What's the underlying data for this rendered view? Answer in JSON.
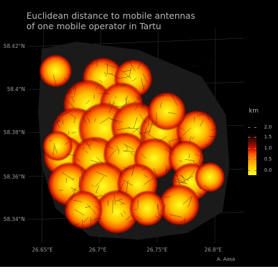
{
  "title_lines": [
    "Euclidean distance to mobile antennas",
    "of one mobile operator in Tartu"
  ],
  "credit": "A. Aasa",
  "lat_labels": [
    "58.42°N",
    "58.4°N",
    "58.38°N",
    "58.36°N",
    "58.34°N"
  ],
  "lon_labels": [
    "26.65°E",
    "26.7°E",
    "26.75°E",
    "26.8°E"
  ],
  "legend": {
    "title": "km",
    "labels": [
      "2.0",
      "1.5",
      "1.0",
      "0.5",
      "0.0"
    ],
    "colors": [
      "#000000",
      "#6a0b00",
      "#e01000",
      "#ff9a00",
      "#ffff20"
    ]
  },
  "colors": {
    "background": "#000000",
    "hot": "#ffff20",
    "mid": "#ff7a00",
    "edge": "#d01000",
    "road": "#2a1200",
    "grid": "#3a3a3a"
  }
}
